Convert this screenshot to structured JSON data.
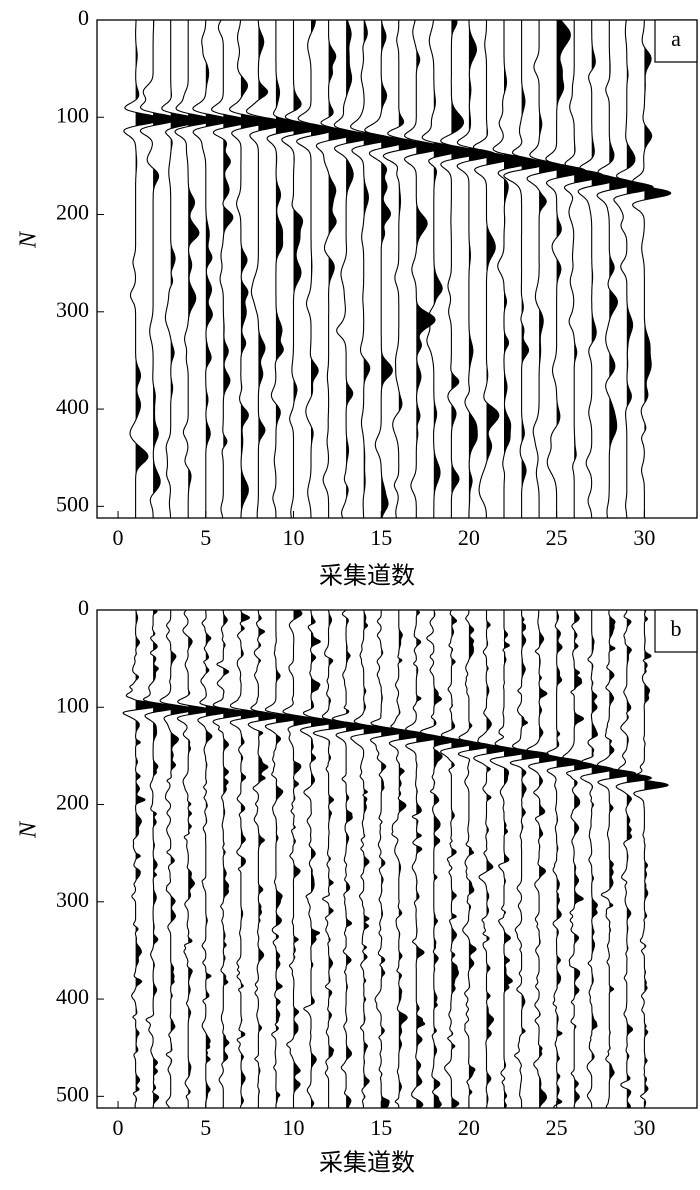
{
  "chart_data": [
    {
      "type": "wiggle",
      "panel_label": "a",
      "x_label": "采集道数",
      "y_label": "N",
      "color": "#000000",
      "x": [
        1,
        2,
        3,
        4,
        5,
        6,
        7,
        8,
        9,
        10,
        11,
        12,
        13,
        14,
        15,
        16,
        17,
        18,
        19,
        20,
        21,
        22,
        23,
        24,
        25,
        26,
        27,
        28,
        29,
        30
      ],
      "values": [
        102,
        102,
        103,
        103,
        103,
        104,
        104,
        106,
        109,
        111,
        113,
        117,
        120,
        122,
        125,
        128,
        131,
        133,
        136,
        138,
        142,
        145,
        148,
        151,
        155,
        160,
        164,
        168,
        172,
        178
      ],
      "xlim": [
        -1.2,
        33
      ],
      "ylim": [
        512,
        0
      ],
      "xticks": [
        0,
        5,
        10,
        15,
        20,
        25,
        30
      ],
      "yticks": [
        0,
        100,
        200,
        300,
        400,
        500
      ]
    },
    {
      "type": "wiggle",
      "panel_label": "b",
      "x_label": "采集道数",
      "y_label": "N",
      "color": "#000000",
      "x": [
        1,
        2,
        3,
        4,
        5,
        6,
        7,
        8,
        9,
        10,
        11,
        12,
        13,
        14,
        15,
        16,
        17,
        18,
        19,
        20,
        21,
        22,
        23,
        24,
        25,
        26,
        27,
        28,
        29,
        30
      ],
      "values": [
        98,
        100,
        102,
        103,
        104,
        106,
        107,
        109,
        111,
        113,
        115,
        118,
        120,
        123,
        125,
        128,
        131,
        134,
        137,
        140,
        143,
        146,
        149,
        152,
        156,
        160,
        164,
        168,
        173,
        180
      ],
      "xlim": [
        -1.2,
        33
      ],
      "ylim": [
        512,
        0
      ],
      "xticks": [
        0,
        5,
        10,
        15,
        20,
        25,
        30
      ],
      "yticks": [
        0,
        100,
        200,
        300,
        400,
        500
      ]
    }
  ]
}
